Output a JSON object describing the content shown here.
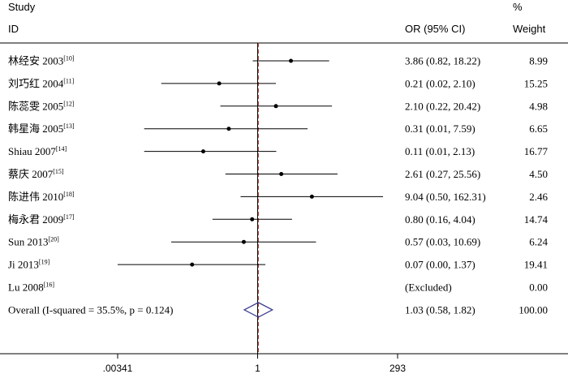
{
  "chart_data": {
    "type": "forest",
    "headers": {
      "study_line1": "Study",
      "study_line2": "ID",
      "or_label": "OR (95% CI)",
      "weight_line1": "%",
      "weight_line2": "Weight"
    },
    "studies": [
      {
        "id": "林经安 2003",
        "ref": "[10]",
        "or": 3.86,
        "lower": 0.82,
        "upper": 18.22,
        "ci_text": "3.86 (0.82, 18.22)",
        "weight": "8.99"
      },
      {
        "id": "刘巧红 2004",
        "ref": "[11]",
        "or": 0.21,
        "lower": 0.02,
        "upper": 2.1,
        "ci_text": "0.21 (0.02, 2.10)",
        "weight": "15.25"
      },
      {
        "id": "陈蕊雯 2005",
        "ref": "[12]",
        "or": 2.1,
        "lower": 0.22,
        "upper": 20.42,
        "ci_text": "2.10 (0.22, 20.42)",
        "weight": "4.98"
      },
      {
        "id": "韩星海 2005",
        "ref": "[13]",
        "or": 0.31,
        "lower": 0.01,
        "upper": 7.59,
        "ci_text": "0.31 (0.01, 7.59)",
        "weight": "6.65"
      },
      {
        "id": "Shiau 2007",
        "ref": "[14]",
        "or": 0.11,
        "lower": 0.01,
        "upper": 2.13,
        "ci_text": "0.11 (0.01, 2.13)",
        "weight": "16.77"
      },
      {
        "id": "蔡庆 2007",
        "ref": "[15]",
        "or": 2.61,
        "lower": 0.27,
        "upper": 25.56,
        "ci_text": "2.61 (0.27, 25.56)",
        "weight": "4.50"
      },
      {
        "id": "陈进伟 2010",
        "ref": "[18]",
        "or": 9.04,
        "lower": 0.5,
        "upper": 162.31,
        "ci_text": "9.04 (0.50, 162.31)",
        "weight": "2.46"
      },
      {
        "id": "梅永君 2009",
        "ref": "[17]",
        "or": 0.8,
        "lower": 0.16,
        "upper": 4.04,
        "ci_text": "0.80 (0.16, 4.04)",
        "weight": "14.74"
      },
      {
        "id": "Sun 2013",
        "ref": "[20]",
        "or": 0.57,
        "lower": 0.03,
        "upper": 10.69,
        "ci_text": "0.57 (0.03, 10.69)",
        "weight": "6.24"
      },
      {
        "id": "Ji 2013",
        "ref": "[19]",
        "or": 0.07,
        "lower": 0.0,
        "upper": 1.37,
        "ci_text": "0.07 (0.00, 1.37)",
        "weight": "19.41"
      },
      {
        "id": "Lu 2008",
        "ref": "[16]",
        "or": null,
        "lower": null,
        "upper": null,
        "ci_text": "(Excluded)",
        "weight": "0.00"
      }
    ],
    "overall": {
      "label": "Overall  (I-squared = 35.5%, p = 0.124)",
      "or": 1.03,
      "lower": 0.58,
      "upper": 1.82,
      "ci_text": "1.03 (0.58, 1.82)",
      "weight": "100.00"
    },
    "x_axis": {
      "scale": "log",
      "ticks": [
        0.00341,
        1,
        293
      ],
      "tick_labels": [
        ".00341",
        "1",
        "293"
      ],
      "reference_line": 1,
      "overall_line": 1.03
    },
    "colors": {
      "diamond": "#3b3b8f",
      "overall_line": "#b33a2a",
      "markers": "#000000"
    }
  }
}
